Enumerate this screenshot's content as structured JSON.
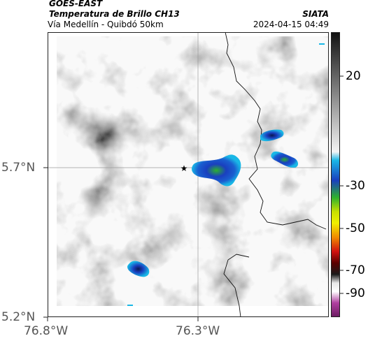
{
  "header": {
    "satellite": "GOES-EAST",
    "product": "Temperatura de Brillo CH13",
    "brand": "SIATA",
    "region": "Vía Medellín - Quibdó 50km",
    "datetime": "2024-04-15 04:49"
  },
  "map": {
    "y_ticks": [
      {
        "label": "5.7°N",
        "value": 5.7
      },
      {
        "label": "5.2°N",
        "value": 5.2
      }
    ],
    "x_ticks": [
      {
        "label": "76.8°W",
        "value": -76.8
      },
      {
        "label": "76.3°W",
        "value": -76.3
      }
    ],
    "marker": {
      "symbol": "★",
      "meaning": "star-marker"
    },
    "gridlines": true
  },
  "colorbar": {
    "tick_labels": [
      "20",
      "-30",
      "-50",
      "-70",
      "-90"
    ],
    "tick_values": [
      20,
      -30,
      -50,
      -70,
      -90
    ],
    "range": [
      30,
      -95
    ],
    "colors": {
      "warm_gray_high": "#1a1a1a",
      "warm_gray_low": "#f2f2f2",
      "cyan": "#19b7e6",
      "blue": "#1a3fbf",
      "green": "#2db12d",
      "yellow": "#f0f000",
      "orange": "#f08a00",
      "red": "#d01010",
      "dark": "#1a1a1a",
      "white": "#ffffff",
      "magenta": "#b040a0"
    }
  }
}
